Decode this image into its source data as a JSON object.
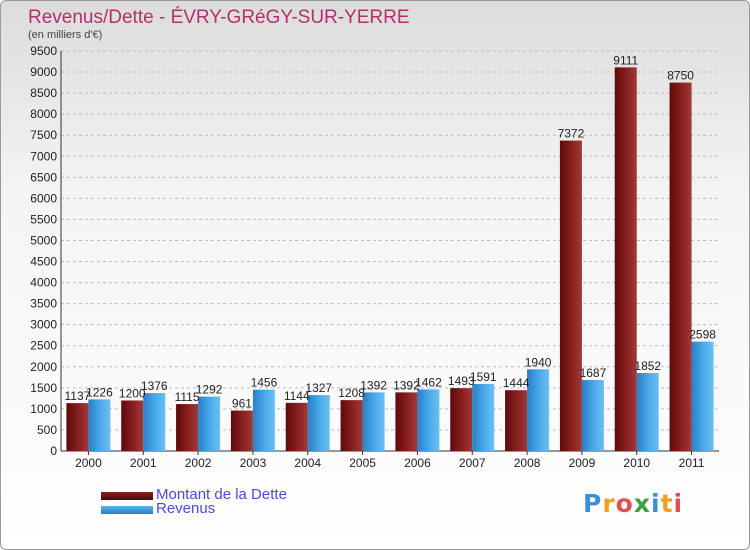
{
  "header": {
    "title": "Revenus/Dette - ÉVRY-GRéGY-SUR-YERRE",
    "subtitle": "(en milliers d'€)"
  },
  "legend": {
    "debt_label": "Montant de la Dette",
    "revenue_label": "Revenus"
  },
  "logo": {
    "letters": [
      "P",
      "r",
      "o",
      "x",
      "i",
      "t",
      "i"
    ],
    "colors": [
      "#3a8fd8",
      "#f0a020",
      "#e05050",
      "#40a040",
      "#3a8fd8",
      "#f0a020",
      "#e05050"
    ]
  },
  "colors": {
    "debt": "#7a1414",
    "revenue": "#3c9ee0",
    "title": "#b5306b",
    "legend_text": "#4a4ae0"
  },
  "chart_data": {
    "type": "bar",
    "title": "Revenus/Dette - ÉVRY-GRéGY-SUR-YERRE",
    "ylabel": "(en milliers d'€)",
    "xlabel": "",
    "categories": [
      "2000",
      "2001",
      "2002",
      "2003",
      "2004",
      "2005",
      "2006",
      "2007",
      "2008",
      "2009",
      "2010",
      "2011"
    ],
    "series": [
      {
        "name": "Montant de la Dette",
        "values": [
          1137,
          1200,
          1115,
          961,
          1144,
          1208,
          1392,
          1493,
          1444,
          7372,
          9111,
          8750
        ]
      },
      {
        "name": "Revenus",
        "values": [
          1226,
          1376,
          1292,
          1456,
          1327,
          1392,
          1462,
          1591,
          1940,
          1687,
          1852,
          2598
        ]
      }
    ],
    "ylim": [
      0,
      9500
    ],
    "yticks": [
      0,
      500,
      1000,
      1500,
      2000,
      2500,
      3000,
      3500,
      4000,
      4500,
      5000,
      5500,
      6000,
      6500,
      7000,
      7500,
      8000,
      8500,
      9000,
      9500
    ],
    "grid": true,
    "legend_position": "bottom-left"
  }
}
